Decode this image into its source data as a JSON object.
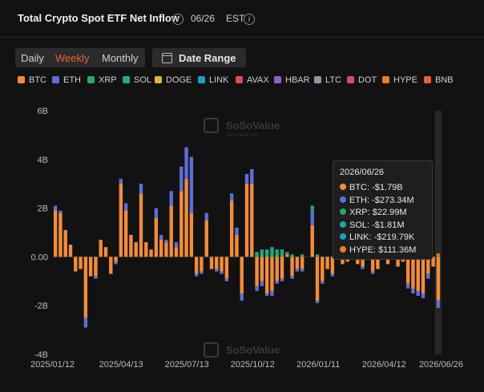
{
  "header": {
    "title": "Total Crypto Spot ETF Net Inflow",
    "date": "06/26",
    "timezone": "EST"
  },
  "period_toggle": {
    "options": [
      "Daily",
      "Weekly",
      "Monthly"
    ],
    "selected": "Weekly"
  },
  "date_range": {
    "label": "Date Range",
    "icon": "calendar-icon"
  },
  "watermark": {
    "brand": "SoSoValue",
    "site": "sosovalue.com"
  },
  "colors": {
    "BTC": "#f28c3c",
    "ETH": "#5b6fd6",
    "XRP": "#2aa860",
    "SOL": "#1fa89a",
    "DOGE": "#e6b23a",
    "LINK": "#1a9ec4",
    "AVAX": "#e04b4b",
    "HBAR": "#9b5bd6",
    "LTC": "#8a9aa8",
    "DOT": "#e2456a",
    "HYPE": "#f07a2a",
    "BNB": "#e8603a",
    "accent": "#e8603a",
    "background": "#121212"
  },
  "tooltip": {
    "date": "2026/06/26",
    "rows": [
      {
        "asset": "BTC",
        "text": "BTC: -$1.79B"
      },
      {
        "asset": "ETH",
        "text": "ETH: -$273.34M"
      },
      {
        "asset": "XRP",
        "text": "XRP: $22.99M"
      },
      {
        "asset": "SOL",
        "text": "SOL: -$1.81M"
      },
      {
        "asset": "LINK",
        "text": "LINK: -$219.79K"
      },
      {
        "asset": "HYPE",
        "text": "HYPE: $111.36M"
      }
    ]
  },
  "chart_data": {
    "type": "bar",
    "stacked": true,
    "title": "Total Crypto Spot ETF Net Inflow",
    "legend": [
      "BTC",
      "ETH",
      "XRP",
      "SOL",
      "DOGE",
      "LINK",
      "AVAX",
      "HBAR",
      "LTC",
      "DOT",
      "HYPE",
      "BNB"
    ],
    "legend_position": "top-left",
    "grid": false,
    "ylim": [
      -4,
      6
    ],
    "yticks": [
      6,
      4,
      2,
      0,
      -2,
      -4
    ],
    "ytick_labels": [
      "6B",
      "4B",
      "2B",
      "0.00",
      "-2B",
      "-4B"
    ],
    "xtick_labels": [
      "2025/01/12",
      "2025/04/13",
      "2025/07/13",
      "2025/10/12",
      "2026/01/11",
      "2026/04/12",
      "2026/06/26"
    ],
    "x_start": "2025/01/12",
    "x_end": "2026/06/26",
    "week_ending": [
      "2025/01/12",
      "2025/01/19",
      "2025/01/26",
      "2025/02/02",
      "2025/02/09",
      "2025/02/16",
      "2025/02/23",
      "2025/03/02",
      "2025/03/09",
      "2025/03/16",
      "2025/03/23",
      "2025/03/30",
      "2025/04/06",
      "2025/04/13",
      "2025/04/20",
      "2025/04/27",
      "2025/05/04",
      "2025/05/11",
      "2025/05/18",
      "2025/05/25",
      "2025/06/01",
      "2025/06/08",
      "2025/06/15",
      "2025/06/22",
      "2025/06/29",
      "2025/07/06",
      "2025/07/13",
      "2025/07/20",
      "2025/07/27",
      "2025/08/03",
      "2025/08/10",
      "2025/08/17",
      "2025/08/24",
      "2025/08/31",
      "2025/09/07",
      "2025/09/14",
      "2025/09/21",
      "2025/09/28",
      "2025/10/05",
      "2025/10/12",
      "2025/10/19",
      "2025/10/26",
      "2025/11/02",
      "2025/11/09",
      "2025/11/16",
      "2025/11/23",
      "2025/11/30",
      "2025/12/07",
      "2025/12/14",
      "2025/12/21",
      "2025/12/28",
      "2026/01/04",
      "2026/01/11",
      "2026/01/18",
      "2026/01/25",
      "2026/02/01",
      "2026/02/08",
      "2026/02/15",
      "2026/02/22",
      "2026/03/01",
      "2026/03/08",
      "2026/03/15",
      "2026/03/22",
      "2026/03/29",
      "2026/04/05",
      "2026/04/12",
      "2026/04/19",
      "2026/04/26",
      "2026/05/03",
      "2026/05/10",
      "2026/05/17",
      "2026/05/24",
      "2026/05/31",
      "2026/06/07",
      "2026/06/14",
      "2026/06/21",
      "2026/06/26"
    ],
    "series": [
      {
        "name": "BTC",
        "values": [
          1.9,
          1.8,
          1.1,
          0.5,
          -0.6,
          -0.5,
          -2.5,
          -0.8,
          -0.8,
          0.7,
          0.4,
          -0.7,
          -0.2,
          3.0,
          1.9,
          0.9,
          0.6,
          2.6,
          0.6,
          0.3,
          1.6,
          0.7,
          0.6,
          2.1,
          0.4,
          2.7,
          3.2,
          1.8,
          -0.7,
          -0.6,
          1.5,
          -0.5,
          -0.5,
          -0.6,
          -0.9,
          2.3,
          0.9,
          -1.5,
          3.0,
          3.0,
          -1.2,
          -1.0,
          -1.5,
          -1.4,
          -1.0,
          -0.9,
          0.1,
          -0.8,
          -0.5,
          -0.5,
          0.0,
          1.3,
          -1.8,
          -1.0,
          -0.5,
          -0.7,
          0.6,
          -0.3,
          -0.2,
          0.3,
          -0.3,
          -0.4,
          0.3,
          -0.6,
          -0.5,
          0.4,
          -0.3,
          0.4,
          -0.4,
          -0.2,
          -1.1,
          -1.3,
          -1.4,
          -1.5,
          -0.7,
          -0.4,
          -1.79
        ]
      },
      {
        "name": "ETH",
        "values": [
          0.2,
          0.1,
          0.0,
          0.0,
          0.0,
          0.0,
          -0.4,
          0.0,
          -0.1,
          0.0,
          0.0,
          0.0,
          -0.1,
          0.2,
          0.3,
          0.0,
          0.0,
          0.4,
          0.0,
          0.0,
          0.4,
          0.2,
          0.1,
          0.6,
          0.2,
          1.0,
          1.3,
          2.3,
          -0.1,
          -0.1,
          0.3,
          0.0,
          -0.1,
          -0.1,
          -0.1,
          0.3,
          0.3,
          -0.3,
          0.4,
          0.6,
          -0.2,
          -0.2,
          -0.1,
          -0.2,
          -0.1,
          -0.1,
          0.1,
          -0.1,
          -0.1,
          -0.1,
          0.0,
          0.6,
          -0.1,
          -0.1,
          0.0,
          -0.1,
          0.1,
          0.0,
          0.0,
          0.0,
          0.0,
          -0.1,
          0.0,
          -0.1,
          0.0,
          0.0,
          0.0,
          0.0,
          0.0,
          0.0,
          -0.2,
          -0.2,
          -0.2,
          -0.2,
          -0.2,
          0.0,
          -0.27334
        ]
      },
      {
        "name": "XRP",
        "values": [
          0,
          0,
          0,
          0,
          0,
          0,
          0,
          0,
          0,
          0,
          0,
          0,
          0,
          0,
          0,
          0,
          0,
          0,
          0,
          0,
          0,
          0,
          0,
          0,
          0,
          0,
          0,
          0,
          0,
          0,
          0,
          0,
          0,
          0,
          0,
          0,
          0,
          0,
          0,
          0,
          0.1,
          0.2,
          0.1,
          0.3,
          0.2,
          0.2,
          0.0,
          0.1,
          0.0,
          0.1,
          0.0,
          0.2,
          0.1,
          0.0,
          0.0,
          0.0,
          0.0,
          0.0,
          0.0,
          0.0,
          0,
          0,
          0,
          0,
          0,
          0,
          0,
          0,
          0,
          0,
          0,
          0,
          0,
          0,
          0,
          0,
          0.02299
        ]
      },
      {
        "name": "SOL",
        "values": [
          0,
          0,
          0,
          0,
          0,
          0,
          0,
          0,
          0,
          0,
          0,
          0,
          0,
          0,
          0,
          0,
          0,
          0,
          0,
          0,
          0,
          0,
          0,
          0,
          0,
          0,
          0,
          0,
          0,
          0,
          0,
          0,
          0,
          0,
          0,
          0,
          0,
          0,
          0,
          0,
          0.1,
          0.1,
          0.2,
          0.1,
          0.1,
          0.1,
          0.0,
          0.0,
          0.0,
          0.0,
          0.0,
          0.0,
          0.0,
          0.0,
          0.0,
          0.0,
          0.0,
          0.0,
          0.0,
          0.0,
          0,
          0,
          0,
          0,
          0,
          0,
          0,
          0,
          0,
          0,
          0,
          0,
          0,
          0,
          0,
          0,
          -0.00181
        ]
      },
      {
        "name": "LINK",
        "values": [
          0,
          0,
          0,
          0,
          0,
          0,
          0,
          0,
          0,
          0,
          0,
          0,
          0,
          0,
          0,
          0,
          0,
          0,
          0,
          0,
          0,
          0,
          0,
          0,
          0,
          0,
          0,
          0,
          0,
          0,
          0,
          0,
          0,
          0,
          0,
          0,
          0,
          0,
          0,
          0,
          0,
          0,
          0,
          0,
          0,
          0,
          0,
          0,
          0,
          0,
          0,
          0,
          0,
          0,
          0,
          0,
          0,
          0,
          0,
          0,
          0,
          0,
          0,
          0,
          0,
          0,
          0,
          0,
          0,
          0,
          0,
          0,
          0,
          0,
          0,
          0,
          -0.00022
        ]
      },
      {
        "name": "HYPE",
        "values": [
          0,
          0,
          0,
          0,
          0,
          0,
          0,
          0,
          0,
          0,
          0,
          0,
          0,
          0,
          0,
          0,
          0,
          0,
          0,
          0,
          0,
          0,
          0,
          0,
          0,
          0,
          0,
          0,
          0,
          0,
          0,
          0,
          0,
          0,
          0,
          0,
          0,
          0,
          0,
          0,
          0,
          0,
          0,
          0,
          0,
          0,
          0,
          0,
          0,
          0,
          0,
          0,
          0,
          0,
          0,
          0,
          0,
          0,
          0,
          0,
          0,
          0,
          0,
          0,
          0,
          0,
          0,
          0,
          0,
          0,
          0,
          0,
          0,
          0,
          0,
          0,
          0.11136
        ]
      }
    ]
  }
}
